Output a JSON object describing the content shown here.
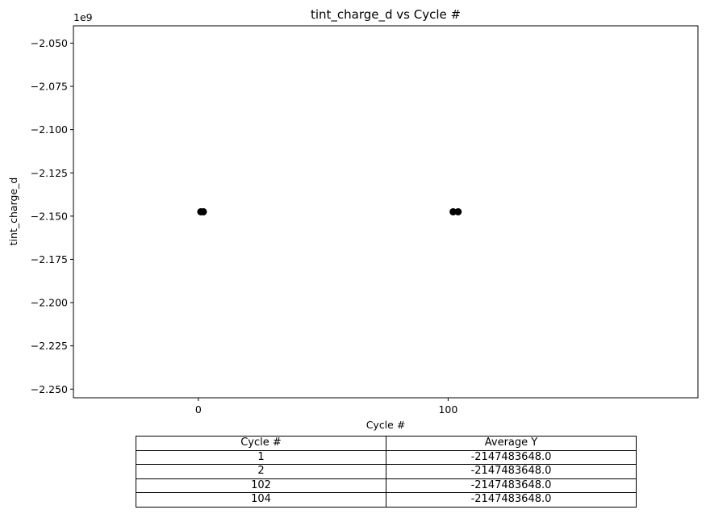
{
  "chart_data": {
    "type": "scatter",
    "title": "tint_charge_d vs Cycle #",
    "xlabel": "Cycle #",
    "ylabel": "tint_charge_d",
    "y_offset_label": "1e9",
    "xlim": [
      -50,
      200
    ],
    "ylim": [
      -2.255,
      -2.04
    ],
    "y_scale_factor": 1000000000,
    "x_ticks": [
      0,
      100
    ],
    "x_tick_labels": [
      "0",
      "100"
    ],
    "y_ticks": [
      -2.05,
      -2.075,
      -2.1,
      -2.125,
      -2.15,
      -2.175,
      -2.2,
      -2.225,
      -2.25
    ],
    "y_tick_labels": [
      "−2.050",
      "−2.075",
      "−2.100",
      "−2.125",
      "−2.150",
      "−2.175",
      "−2.200",
      "−2.225",
      "−2.250"
    ],
    "grid": false,
    "marker_color": "#000000",
    "points": [
      {
        "x": 1,
        "y": -2147483648
      },
      {
        "x": 2,
        "y": -2147483648
      },
      {
        "x": 102,
        "y": -2147483648
      },
      {
        "x": 104,
        "y": -2147483648
      }
    ]
  },
  "table": {
    "headers": [
      "Cycle #",
      "Average Y"
    ],
    "rows": [
      [
        "1",
        "-2147483648.0"
      ],
      [
        "2",
        "-2147483648.0"
      ],
      [
        "102",
        "-2147483648.0"
      ],
      [
        "104",
        "-2147483648.0"
      ]
    ]
  }
}
